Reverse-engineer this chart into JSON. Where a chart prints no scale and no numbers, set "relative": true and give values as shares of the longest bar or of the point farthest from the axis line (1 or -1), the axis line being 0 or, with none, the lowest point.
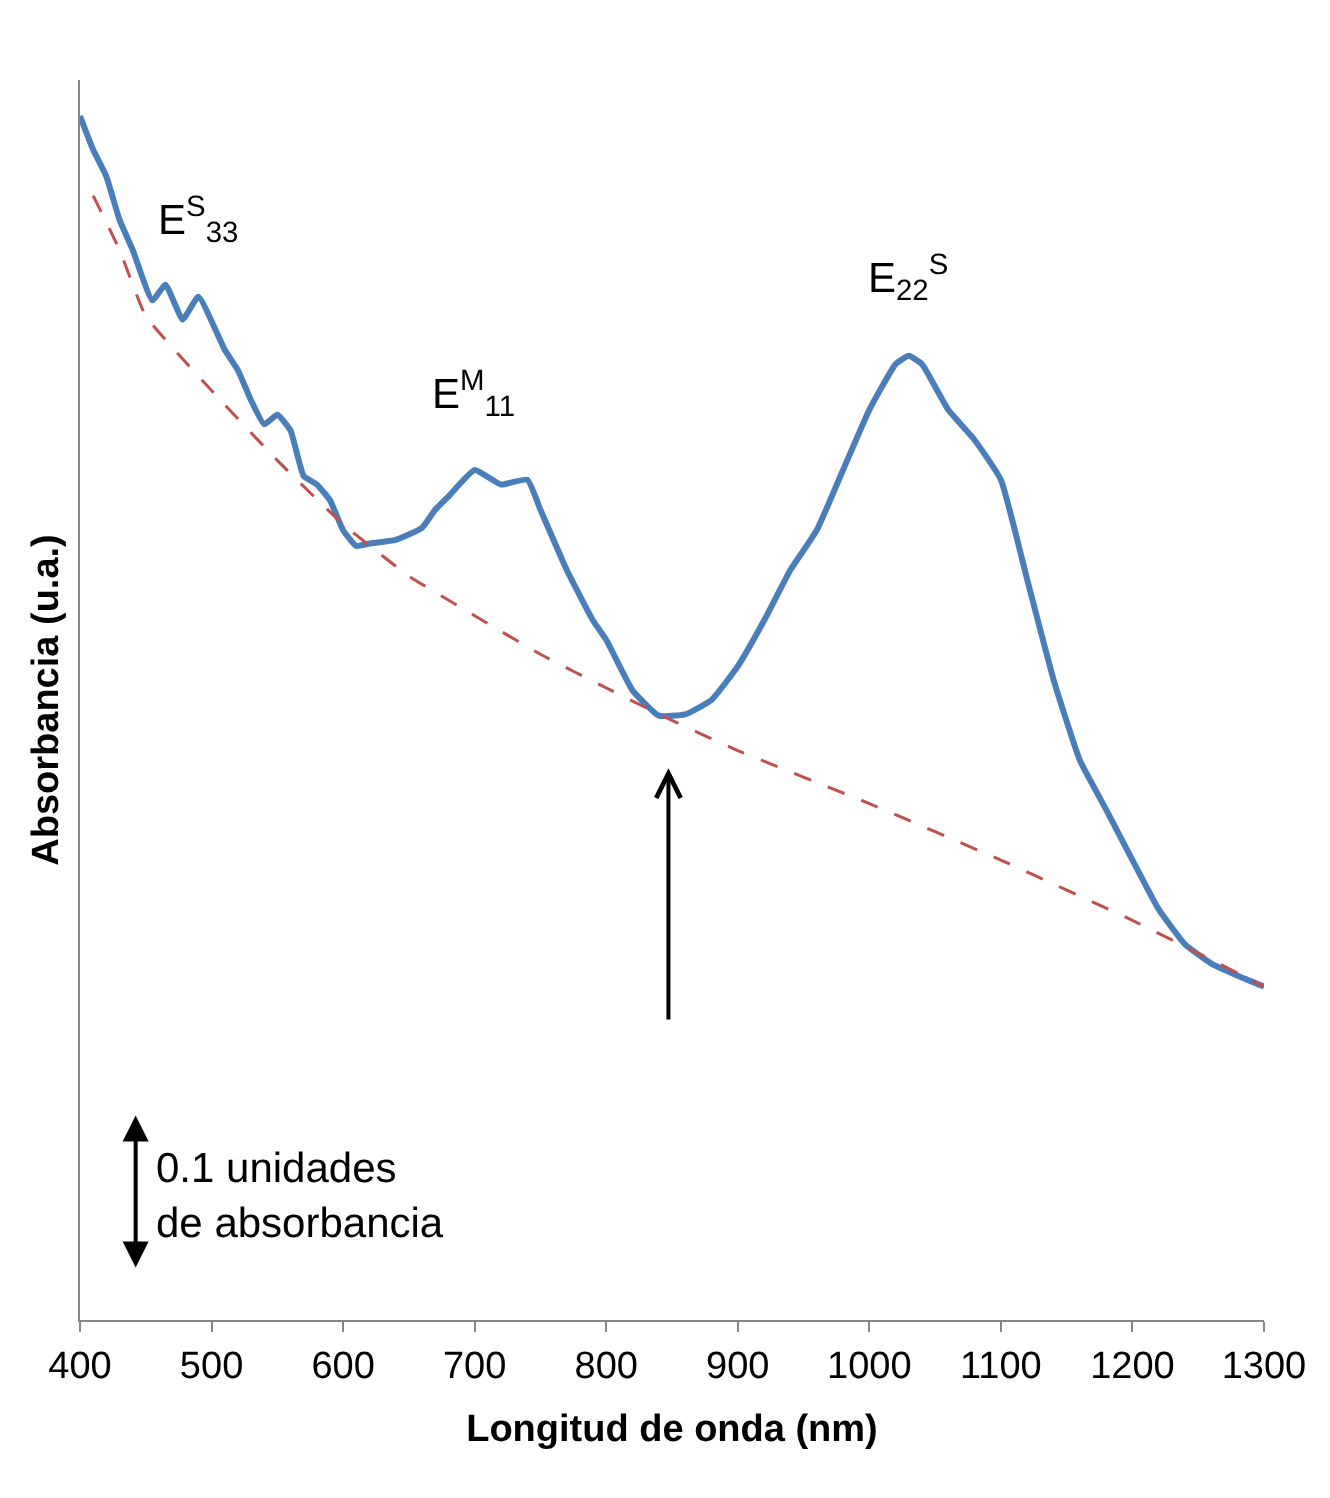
{
  "chart_data": {
    "type": "line",
    "relative": true,
    "xlabel": "Longitud de onda (nm)",
    "ylabel": "Absorbancia (u.a.)",
    "xlim": [
      400,
      1300
    ],
    "xticks": [
      400,
      500,
      600,
      700,
      800,
      900,
      1000,
      1100,
      1200,
      1300
    ],
    "legend": false,
    "marker": "none",
    "series": [
      {
        "color": "#4a7ebb",
        "line_style": "solid",
        "x": [
          400,
          410,
          420,
          430,
          440,
          455,
          465,
          478,
          490,
          510,
          520,
          530,
          540,
          550,
          560,
          570,
          580,
          590,
          600,
          610,
          620,
          640,
          660,
          670,
          680,
          700,
          720,
          740,
          750,
          770,
          790,
          800,
          820,
          840,
          860,
          880,
          900,
          920,
          940,
          960,
          980,
          1000,
          1020,
          1030,
          1040,
          1060,
          1080,
          1100,
          1120,
          1140,
          1160,
          1180,
          1200,
          1220,
          1240,
          1260,
          1280,
          1300
        ],
        "values": [
          1.0,
          0.972,
          0.95,
          0.914,
          0.889,
          0.847,
          0.86,
          0.831,
          0.85,
          0.806,
          0.789,
          0.764,
          0.744,
          0.752,
          0.739,
          0.701,
          0.694,
          0.681,
          0.656,
          0.643,
          0.645,
          0.648,
          0.658,
          0.673,
          0.684,
          0.706,
          0.694,
          0.698,
          0.673,
          0.623,
          0.581,
          0.565,
          0.523,
          0.502,
          0.503,
          0.515,
          0.543,
          0.581,
          0.623,
          0.656,
          0.706,
          0.756,
          0.794,
          0.801,
          0.794,
          0.756,
          0.731,
          0.698,
          0.615,
          0.532,
          0.465,
          0.424,
          0.382,
          0.341,
          0.312,
          0.296,
          0.286,
          0.277
        ]
      },
      {
        "color": "#c0504d",
        "line_style": "dashed",
        "x": [
          410,
          430,
          450,
          500,
          550,
          600,
          650,
          700,
          750,
          800,
          850,
          900,
          1000,
          1100,
          1200,
          1300
        ],
        "values": [
          0.934,
          0.889,
          0.834,
          0.772,
          0.714,
          0.661,
          0.618,
          0.585,
          0.553,
          0.525,
          0.498,
          0.473,
          0.429,
          0.382,
          0.332,
          0.277
        ]
      }
    ],
    "annotations": [
      {
        "text": "E$^{S}$$_{33}$",
        "x": 490,
        "y": 0.85
      },
      {
        "text": "E$^{M}$$_{11}$",
        "x": 700,
        "y": 0.706
      },
      {
        "text": "E$_{22}$$^{S}$",
        "x": 1030,
        "y": 0.801
      },
      "0.1 unidades\nde absorbancia"
    ]
  }
}
